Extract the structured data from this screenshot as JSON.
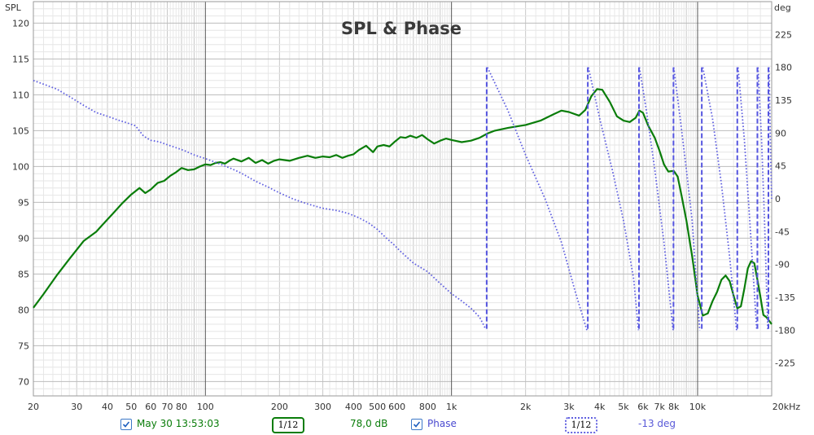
{
  "chart_data": {
    "type": "line",
    "title": "SPL & Phase",
    "y_left_label": "SPL",
    "y_right_label": "deg",
    "x_scale": "log",
    "x_range": [
      20,
      20000
    ],
    "y_left_range": [
      68,
      123
    ],
    "y_right_range": [
      -270,
      270
    ],
    "x_tick_labels": [
      {
        "v": 20,
        "t": "20"
      },
      {
        "v": 30,
        "t": "30"
      },
      {
        "v": 40,
        "t": "40"
      },
      {
        "v": 50,
        "t": "50"
      },
      {
        "v": 60,
        "t": "60"
      },
      {
        "v": 70,
        "t": "70"
      },
      {
        "v": 80,
        "t": "80"
      },
      {
        "v": 100,
        "t": "100"
      },
      {
        "v": 200,
        "t": "200"
      },
      {
        "v": 300,
        "t": "300"
      },
      {
        "v": 400,
        "t": "400"
      },
      {
        "v": 500,
        "t": "500"
      },
      {
        "v": 600,
        "t": "600"
      },
      {
        "v": 800,
        "t": "800"
      },
      {
        "v": 1000,
        "t": "1k"
      },
      {
        "v": 2000,
        "t": "2k"
      },
      {
        "v": 3000,
        "t": "3k"
      },
      {
        "v": 4000,
        "t": "4k"
      },
      {
        "v": 5000,
        "t": "5k"
      },
      {
        "v": 6000,
        "t": "6k"
      },
      {
        "v": 7000,
        "t": "7k"
      },
      {
        "v": 8000,
        "t": "8k"
      },
      {
        "v": 10000,
        "t": "10k"
      },
      {
        "v": 20000,
        "t": "20kHz"
      }
    ],
    "y_left_ticks": [
      70,
      75,
      80,
      85,
      90,
      95,
      100,
      105,
      110,
      115,
      120
    ],
    "y_right_ticks": [
      -225,
      -180,
      -135,
      -90,
      -45,
      0,
      45,
      90,
      135,
      180,
      225
    ],
    "grid": true,
    "legend_position": "bottom",
    "series": [
      {
        "name": "May 30 13:53:03",
        "axis": "left",
        "color": "#0a7d0a",
        "style": "solid",
        "x": [
          20,
          22,
          25,
          28,
          32,
          36,
          38,
          42,
          46,
          50,
          54,
          57,
          60,
          64,
          68,
          72,
          76,
          80,
          85,
          90,
          95,
          100,
          105,
          110,
          115,
          120,
          125,
          130,
          140,
          150,
          160,
          170,
          180,
          190,
          200,
          220,
          240,
          260,
          280,
          300,
          320,
          340,
          360,
          380,
          400,
          420,
          450,
          480,
          500,
          530,
          560,
          590,
          620,
          650,
          680,
          720,
          760,
          800,
          850,
          900,
          950,
          1000,
          1100,
          1200,
          1300,
          1400,
          1500,
          1700,
          2000,
          2300,
          2600,
          2800,
          3000,
          3300,
          3500,
          3700,
          3900,
          4100,
          4400,
          4700,
          5000,
          5300,
          5600,
          5800,
          6000,
          6300,
          6700,
          7000,
          7300,
          7600,
          8000,
          8300,
          8600,
          9000,
          9500,
          10000,
          10500,
          11000,
          11500,
          12000,
          12500,
          13000,
          13500,
          14000,
          14500,
          15000,
          15500,
          16000,
          16500,
          17000,
          17500,
          18000,
          18500,
          19000,
          19500,
          20000
        ],
        "y": [
          80.3,
          82.2,
          84.9,
          87.1,
          89.6,
          90.9,
          91.8,
          93.4,
          94.9,
          96.1,
          97.0,
          96.3,
          96.8,
          97.7,
          98.0,
          98.7,
          99.2,
          99.8,
          99.5,
          99.6,
          100.0,
          100.3,
          100.2,
          100.5,
          100.6,
          100.4,
          100.8,
          101.1,
          100.7,
          101.2,
          100.5,
          100.9,
          100.4,
          100.8,
          101.0,
          100.8,
          101.2,
          101.5,
          101.2,
          101.4,
          101.3,
          101.6,
          101.2,
          101.5,
          101.7,
          102.3,
          102.9,
          102.0,
          102.8,
          103.0,
          102.8,
          103.5,
          104.1,
          104.0,
          104.3,
          104.0,
          104.4,
          103.8,
          103.2,
          103.6,
          103.9,
          103.7,
          103.4,
          103.6,
          104.0,
          104.6,
          105.0,
          105.4,
          105.8,
          106.4,
          107.3,
          107.8,
          107.6,
          107.1,
          107.9,
          109.8,
          110.8,
          110.7,
          109.0,
          107.0,
          106.4,
          106.2,
          106.8,
          107.8,
          107.5,
          105.7,
          104.0,
          102.2,
          100.3,
          99.3,
          99.4,
          98.6,
          96.0,
          92.5,
          87.5,
          82.0,
          79.2,
          79.5,
          81.2,
          82.5,
          84.2,
          84.8,
          84.0,
          82.0,
          80.2,
          80.5,
          83.0,
          85.8,
          86.8,
          86.5,
          84.2,
          81.8,
          79.3,
          79.0,
          78.5,
          78.0
        ]
      },
      {
        "name": "Phase",
        "axis": "right",
        "color": "#6060e0",
        "style": "dotted",
        "x": [
          20,
          22,
          25,
          28,
          32,
          36,
          40,
          44,
          48,
          52,
          56,
          60,
          65,
          70,
          76,
          82,
          90,
          100,
          110,
          120,
          130,
          140,
          160,
          180,
          200,
          230,
          260,
          300,
          340,
          380,
          420,
          460,
          500,
          540,
          580,
          620,
          700,
          800,
          900,
          1000,
          1100,
          1200,
          1300,
          1380
        ],
        "y": [
          162,
          157,
          150,
          140,
          128,
          118,
          113,
          108,
          104,
          100,
          86,
          80,
          78,
          74,
          70,
          66,
          60,
          55,
          50,
          45,
          40,
          35,
          24,
          16,
          8,
          -1,
          -7,
          -13,
          -16,
          -20,
          -26,
          -33,
          -42,
          -53,
          -62,
          -72,
          -88,
          -100,
          -116,
          -130,
          -140,
          -150,
          -162,
          -179
        ]
      },
      {
        "name": "Phase",
        "axis": "right",
        "color": "#6060e0",
        "style": "dotted",
        "x": [
          1400,
          1700,
          2000,
          2400,
          2800,
          3200,
          3550
        ],
        "y": [
          180,
          120,
          60,
          0,
          -60,
          -130,
          -180
        ]
      },
      {
        "name": "Phase",
        "axis": "right",
        "color": "#6060e0",
        "style": "dotted",
        "x": [
          3600,
          4000,
          4500,
          5000,
          5500,
          5750
        ],
        "y": [
          180,
          110,
          40,
          -30,
          -110,
          -180
        ]
      },
      {
        "name": "Phase",
        "axis": "right",
        "color": "#6060e0",
        "style": "dotted",
        "x": [
          5800,
          6200,
          6700,
          7300,
          7950
        ],
        "y": [
          180,
          120,
          40,
          -60,
          -180
        ]
      },
      {
        "name": "Phase",
        "axis": "right",
        "color": "#6060e0",
        "style": "dotted",
        "x": [
          8000,
          8500,
          9000,
          9500,
          10200
        ],
        "y": [
          180,
          110,
          40,
          -30,
          -180
        ]
      },
      {
        "name": "Phase",
        "axis": "right",
        "color": "#6060e0",
        "style": "dotted",
        "x": [
          10500,
          11500,
          12500,
          13500,
          14400
        ],
        "y": [
          180,
          110,
          20,
          -80,
          -180
        ]
      },
      {
        "name": "Phase",
        "axis": "right",
        "color": "#6060e0",
        "style": "dotted",
        "x": [
          14600,
          15500,
          16300,
          17400
        ],
        "y": [
          180,
          80,
          -30,
          -180
        ]
      },
      {
        "name": "Phase",
        "axis": "right",
        "color": "#6060e0",
        "style": "dotted",
        "x": [
          17600,
          18200,
          18700,
          19300
        ],
        "y": [
          180,
          80,
          -30,
          -180
        ]
      },
      {
        "name": "Phase",
        "axis": "right",
        "color": "#6060e0",
        "style": "dotted",
        "x": [
          19500,
          19800,
          20000
        ],
        "y": [
          180,
          60,
          0
        ]
      }
    ],
    "phase_wraps": [
      1390,
      3580,
      5780,
      7980,
      10400,
      14500,
      17500,
      19400
    ]
  },
  "legend": {
    "spl_label": "May 30 13:53:03",
    "spl_smoothing": "1/12",
    "spl_value": "78,0 dB",
    "phase_label": "Phase",
    "phase_smoothing": "1/12",
    "phase_value": "-13 deg",
    "spl_checked": true,
    "phase_checked": true,
    "spl_color": "#0a7d0a",
    "phase_color": "#6060e0",
    "value_phase_color": "#5a5ad8"
  }
}
